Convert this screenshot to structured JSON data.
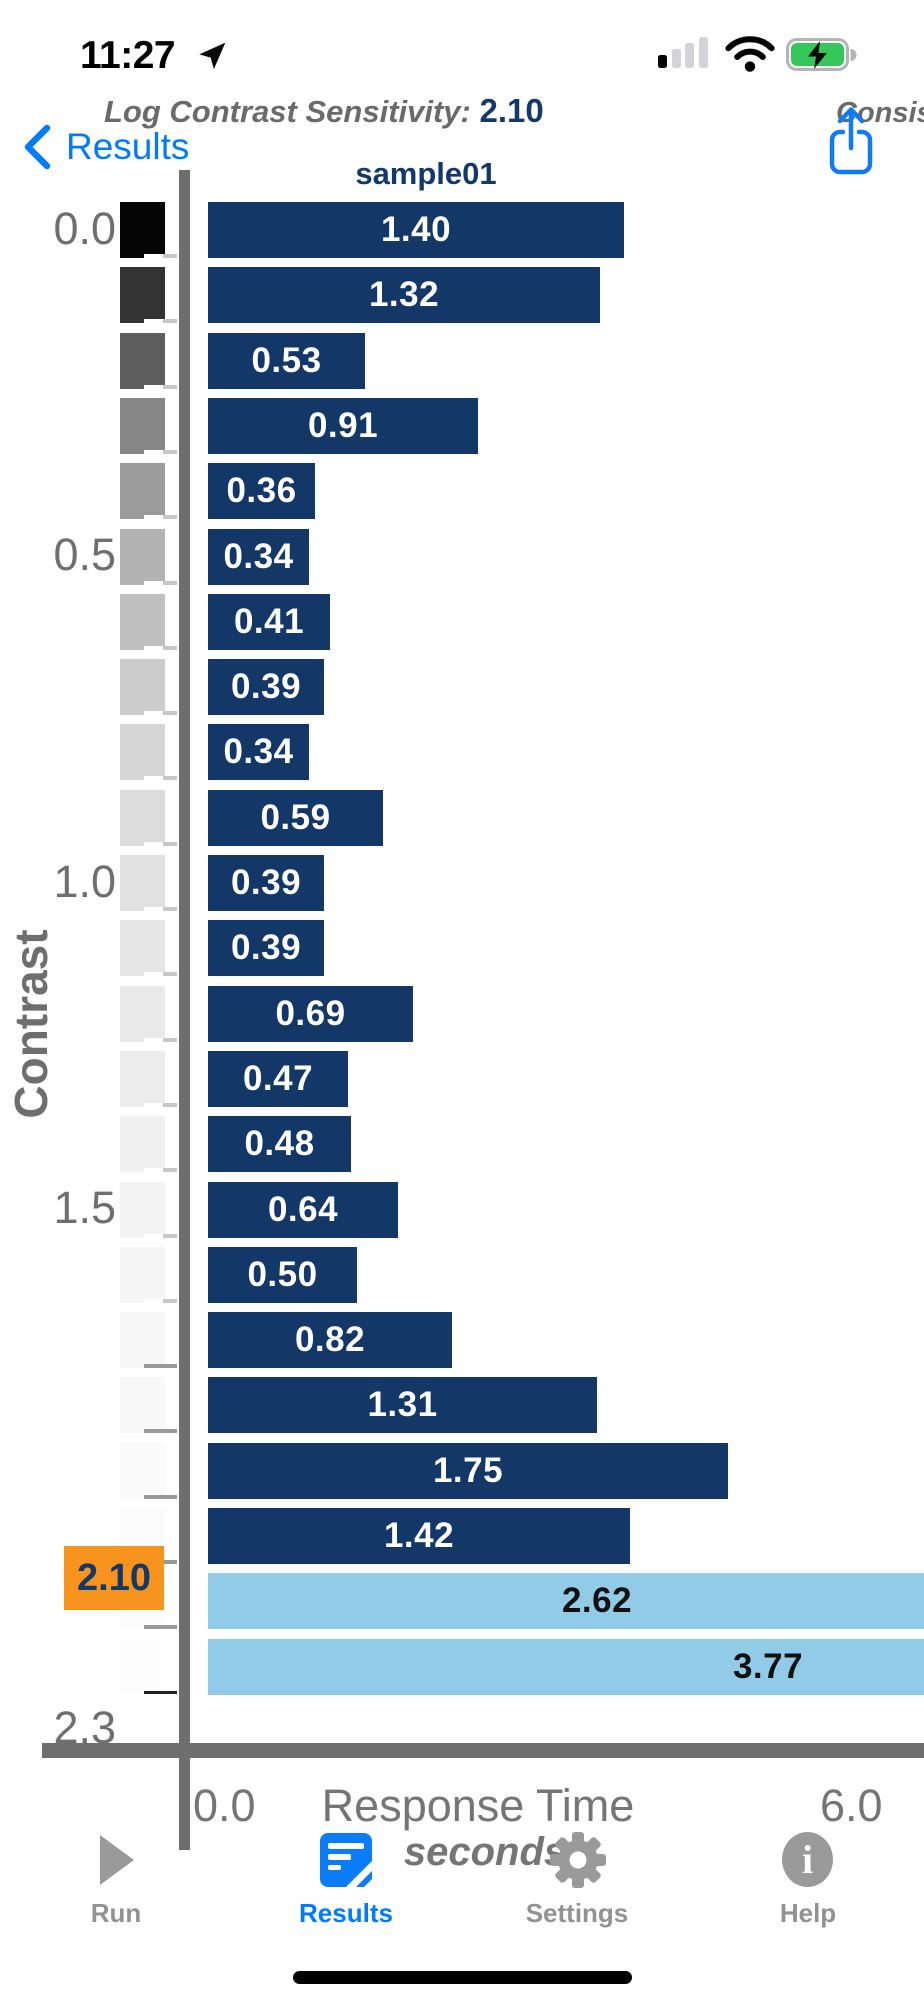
{
  "status_bar": {
    "time": "11:27",
    "location_icon": "navigation-arrow",
    "signal_bars_filled": 1,
    "signal_bars_total": 4,
    "wifi": "full",
    "battery_state": "charging"
  },
  "nav": {
    "overlay_left_label": "Log Contrast Sensitivity:",
    "overlay_left_value": "2.10",
    "overlay_right_truncated": "Consis",
    "back_label": "Results",
    "share_icon": "share-up-arrow"
  },
  "chart_data": {
    "type": "bar",
    "orientation": "horizontal",
    "title": "sample01",
    "xlabel": "Response Time",
    "x_unit": "seconds",
    "xlim": [
      0.0,
      6.0
    ],
    "x_tick_labels": [
      "0.0",
      "6.0"
    ],
    "ylabel": "Contrast",
    "y_tick_labels": [
      "0.0",
      "0.5",
      "1.0",
      "1.5",
      "2.3"
    ],
    "y_range_log_contrast": [
      0.0,
      2.3
    ],
    "threshold": {
      "label": "2.10",
      "value": 2.1,
      "color": "#f7941e"
    },
    "bars": [
      {
        "value": 1.4,
        "label": "1.40",
        "highlight": false
      },
      {
        "value": 1.32,
        "label": "1.32",
        "highlight": false
      },
      {
        "value": 0.53,
        "label": "0.53",
        "highlight": false
      },
      {
        "value": 0.91,
        "label": "0.91",
        "highlight": false
      },
      {
        "value": 0.36,
        "label": "0.36",
        "highlight": false
      },
      {
        "value": 0.34,
        "label": "0.34",
        "highlight": false
      },
      {
        "value": 0.41,
        "label": "0.41",
        "highlight": false
      },
      {
        "value": 0.39,
        "label": "0.39",
        "highlight": false
      },
      {
        "value": 0.34,
        "label": "0.34",
        "highlight": false
      },
      {
        "value": 0.59,
        "label": "0.59",
        "highlight": false
      },
      {
        "value": 0.39,
        "label": "0.39",
        "highlight": false
      },
      {
        "value": 0.39,
        "label": "0.39",
        "highlight": false
      },
      {
        "value": 0.69,
        "label": "0.69",
        "highlight": false
      },
      {
        "value": 0.47,
        "label": "0.47",
        "highlight": false
      },
      {
        "value": 0.48,
        "label": "0.48",
        "highlight": false
      },
      {
        "value": 0.64,
        "label": "0.64",
        "highlight": false
      },
      {
        "value": 0.5,
        "label": "0.50",
        "highlight": false
      },
      {
        "value": 0.82,
        "label": "0.82",
        "highlight": false
      },
      {
        "value": 1.31,
        "label": "1.31",
        "highlight": false
      },
      {
        "value": 1.75,
        "label": "1.75",
        "highlight": false
      },
      {
        "value": 1.42,
        "label": "1.42",
        "highlight": false
      },
      {
        "value": 2.62,
        "label": "2.62",
        "highlight": true
      },
      {
        "value": 3.77,
        "label": "3.77",
        "highlight": true
      }
    ],
    "swatch_grays": [
      "#050505",
      "#333333",
      "#5e5e5e",
      "#868686",
      "#9b9b9b",
      "#b3b3b3",
      "#c0c0c0",
      "#cccccc",
      "#d6d6d6",
      "#dcdcdc",
      "#e1e1e1",
      "#e6e6e6",
      "#eaeaea",
      "#ededed",
      "#f0f0f0",
      "#f3f3f3",
      "#f5f5f5",
      "#f7f7f7",
      "#f8f8f8",
      "#fafafa",
      "#fbfbfb",
      "#fcfcfc",
      "#fdfdfd"
    ],
    "colors": {
      "bar": "#133868",
      "bar_highlight": "#92cbe8",
      "bar_label": "#ffffff",
      "bar_highlight_label": "#111111",
      "axis": "#6e6e6e",
      "tick_label": "#6f6f6f"
    },
    "legend": "none",
    "grid": false
  },
  "tab_bar": {
    "items": [
      {
        "label": "Run",
        "icon": "play",
        "active": false
      },
      {
        "label": "Results",
        "icon": "document",
        "active": true
      },
      {
        "label": "Settings",
        "icon": "gear",
        "active": false
      },
      {
        "label": "Help",
        "icon": "info",
        "active": false
      }
    ],
    "active_color": "#007aff",
    "inactive_color": "#929292"
  }
}
